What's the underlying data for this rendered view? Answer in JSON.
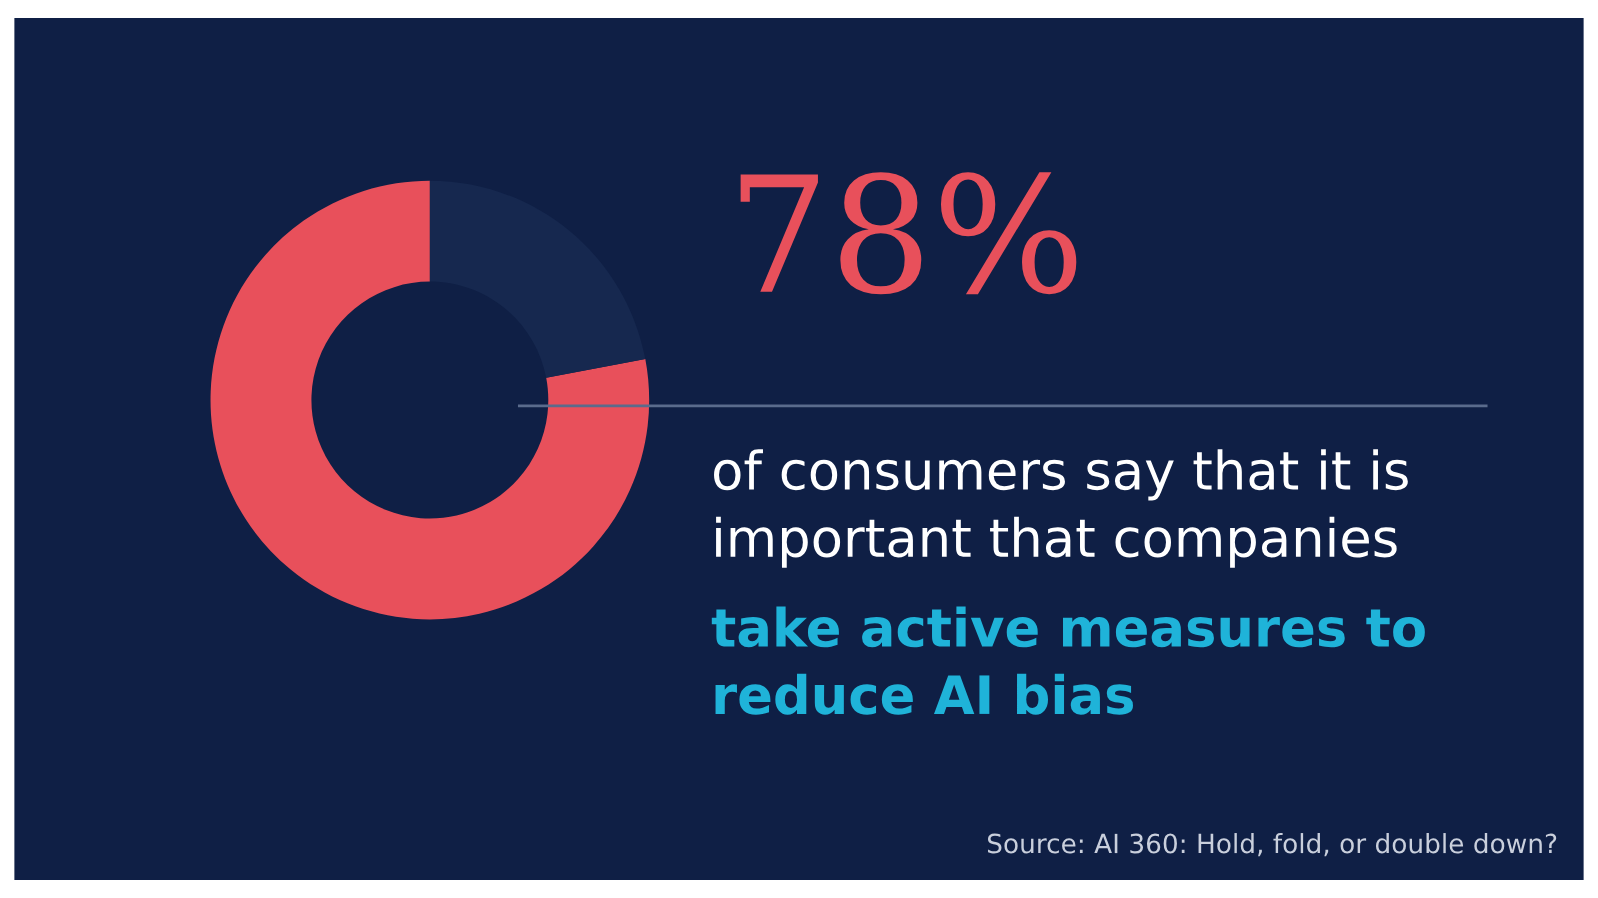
{
  "chart_data": {
    "type": "donut",
    "title": "78%",
    "categories": [
      null,
      null
    ],
    "values": [
      78,
      22
    ],
    "colors": [
      "#e8505b",
      "#16284f"
    ],
    "annotations": [
      "of consumers say that it is",
      "important that companies",
      "take active measures to",
      "reduce AI bias",
      "Source: AI 360: Hold, fold, or double down?"
    ]
  }
}
